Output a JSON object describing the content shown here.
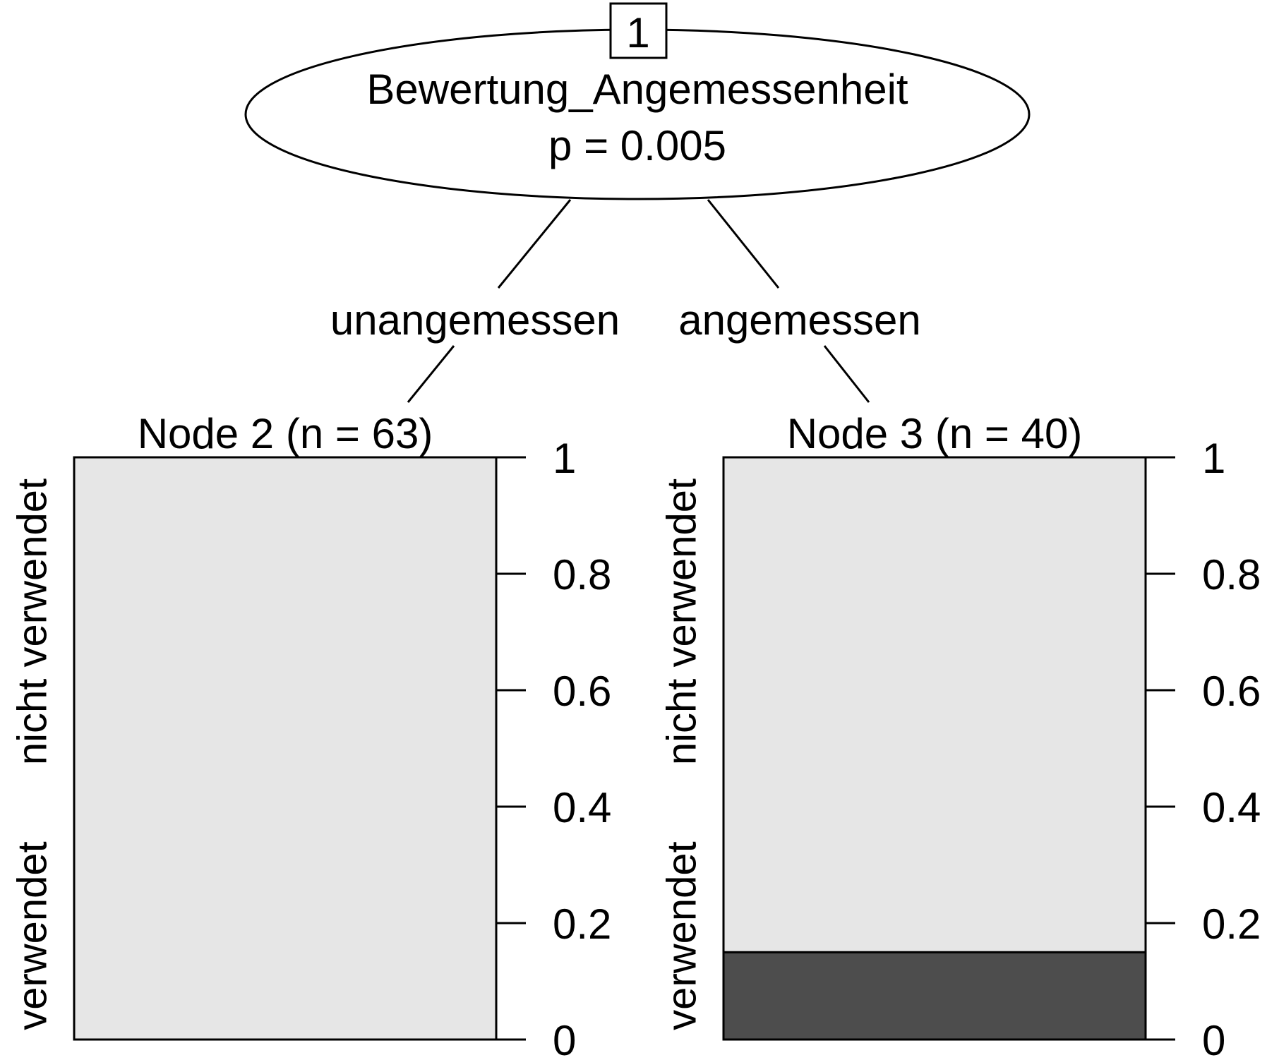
{
  "root": {
    "id": "1",
    "variable": "Bewertung_Angemessenheit",
    "p_value": "p = 0.005"
  },
  "edges": [
    {
      "label": "unangemessen"
    },
    {
      "label": "angemessen"
    }
  ],
  "colors": {
    "nicht_verwendet": "#e6e6e6",
    "verwendet": "#4d4d4d",
    "line": "#000000"
  },
  "chart_data": [
    {
      "type": "bar",
      "title": "Node 2 (n = 63)",
      "categories": [
        "verwendet",
        "nicht verwendet"
      ],
      "stack": [
        {
          "name": "verwendet",
          "value": 0.0
        },
        {
          "name": "nicht verwendet",
          "value": 1.0
        }
      ],
      "ylim": [
        0,
        1
      ],
      "yticks": [
        "0",
        "0.2",
        "0.4",
        "0.6",
        "0.8",
        "1"
      ]
    },
    {
      "type": "bar",
      "title": "Node 3 (n = 40)",
      "categories": [
        "verwendet",
        "nicht verwendet"
      ],
      "stack": [
        {
          "name": "verwendet",
          "value": 0.15
        },
        {
          "name": "nicht verwendet",
          "value": 0.85
        }
      ],
      "ylim": [
        0,
        1
      ],
      "yticks": [
        "0",
        "0.2",
        "0.4",
        "0.6",
        "0.8",
        "1"
      ]
    }
  ]
}
